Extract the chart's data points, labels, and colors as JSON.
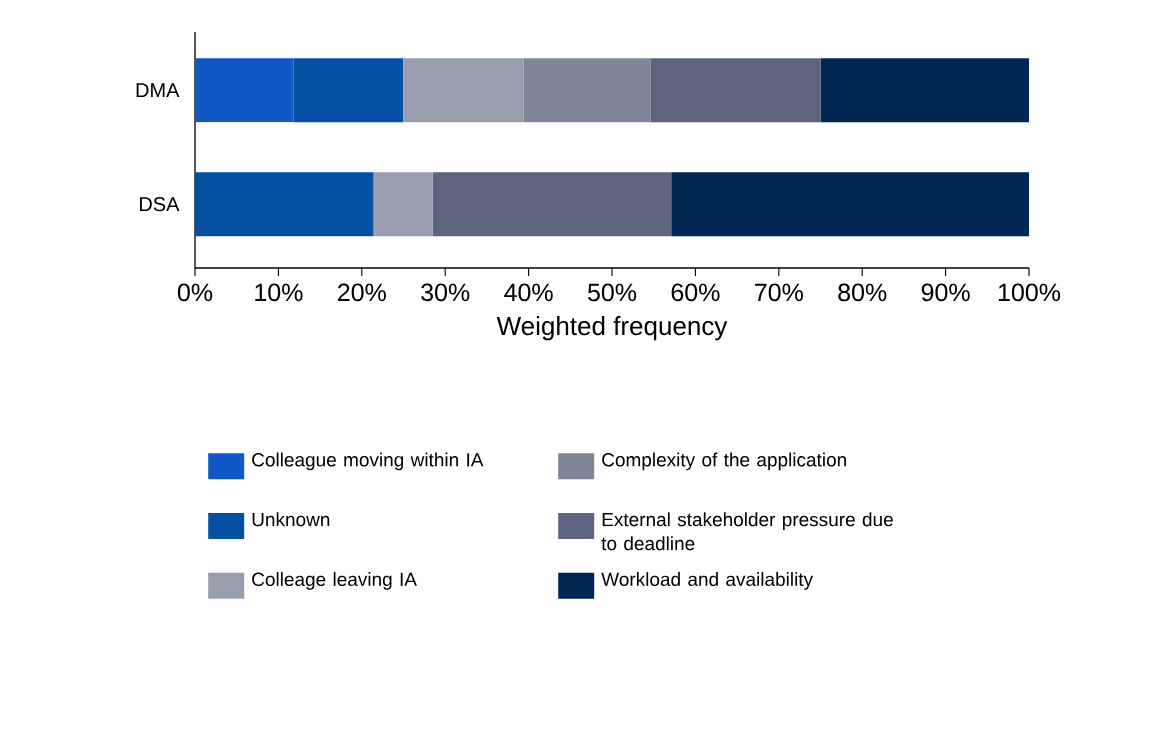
{
  "chart_data": {
    "type": "bar",
    "orientation": "horizontal",
    "stacked": true,
    "categories": [
      "DMA",
      "DSA"
    ],
    "series": [
      {
        "name": "Colleague moving within IA",
        "color": "#1158c7",
        "values": [
          11.8,
          0
        ]
      },
      {
        "name": "Unknown",
        "color": "#0550a3",
        "values": [
          13.2,
          21.4
        ]
      },
      {
        "name": "Colleage leaving IA",
        "color": "#989eae",
        "values": [
          14.4,
          7.1
        ]
      },
      {
        "name": "Complexity of the application",
        "color": "#7f8597",
        "values": [
          15.2,
          0
        ]
      },
      {
        "name": "External stakeholder pressure due to deadline",
        "color": "#5d647d",
        "values": [
          20.4,
          28.6
        ]
      },
      {
        "name": "Workload and availability",
        "color": "#002754",
        "values": [
          25.0,
          42.9
        ]
      }
    ],
    "xlabel": "Weighted frequency",
    "xlim": [
      0,
      100
    ],
    "xticks": [
      {
        "value": 0,
        "label": "0%"
      },
      {
        "value": 10,
        "label": "10%"
      },
      {
        "value": 20,
        "label": "20%"
      },
      {
        "value": 30,
        "label": "30%"
      },
      {
        "value": 40,
        "label": "40%"
      },
      {
        "value": 50,
        "label": "50%"
      },
      {
        "value": 60,
        "label": "60%"
      },
      {
        "value": 70,
        "label": "70%"
      },
      {
        "value": 80,
        "label": "80%"
      },
      {
        "value": 90,
        "label": "90%"
      },
      {
        "value": 100,
        "label": "100%"
      }
    ],
    "legend": "bottom"
  }
}
